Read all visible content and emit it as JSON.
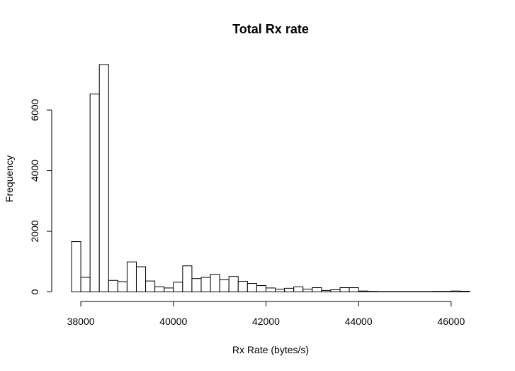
{
  "chart_data": {
    "type": "bar",
    "title": "Total Rx rate",
    "xlabel": "Rx Rate (bytes/s)",
    "ylabel": "Frequency",
    "bin_width": 200,
    "x_start": 37800,
    "xlim": [
      37800,
      46400
    ],
    "ylim": [
      0,
      7500
    ],
    "x_ticks": [
      38000,
      40000,
      42000,
      44000,
      46000
    ],
    "y_ticks": [
      0,
      2000,
      4000,
      6000
    ],
    "x_tick_labels": [
      "38000",
      "40000",
      "42000",
      "44000",
      "46000"
    ],
    "y_tick_labels": [
      "0",
      "2000",
      "4000",
      "6000"
    ],
    "values": [
      1660,
      480,
      6530,
      7500,
      380,
      340,
      990,
      830,
      360,
      170,
      130,
      320,
      860,
      440,
      480,
      580,
      400,
      510,
      350,
      280,
      210,
      130,
      90,
      120,
      170,
      90,
      140,
      50,
      70,
      140,
      140,
      30,
      15,
      10,
      10,
      10,
      10,
      10,
      10,
      15,
      15,
      30,
      20
    ],
    "grid": false
  }
}
